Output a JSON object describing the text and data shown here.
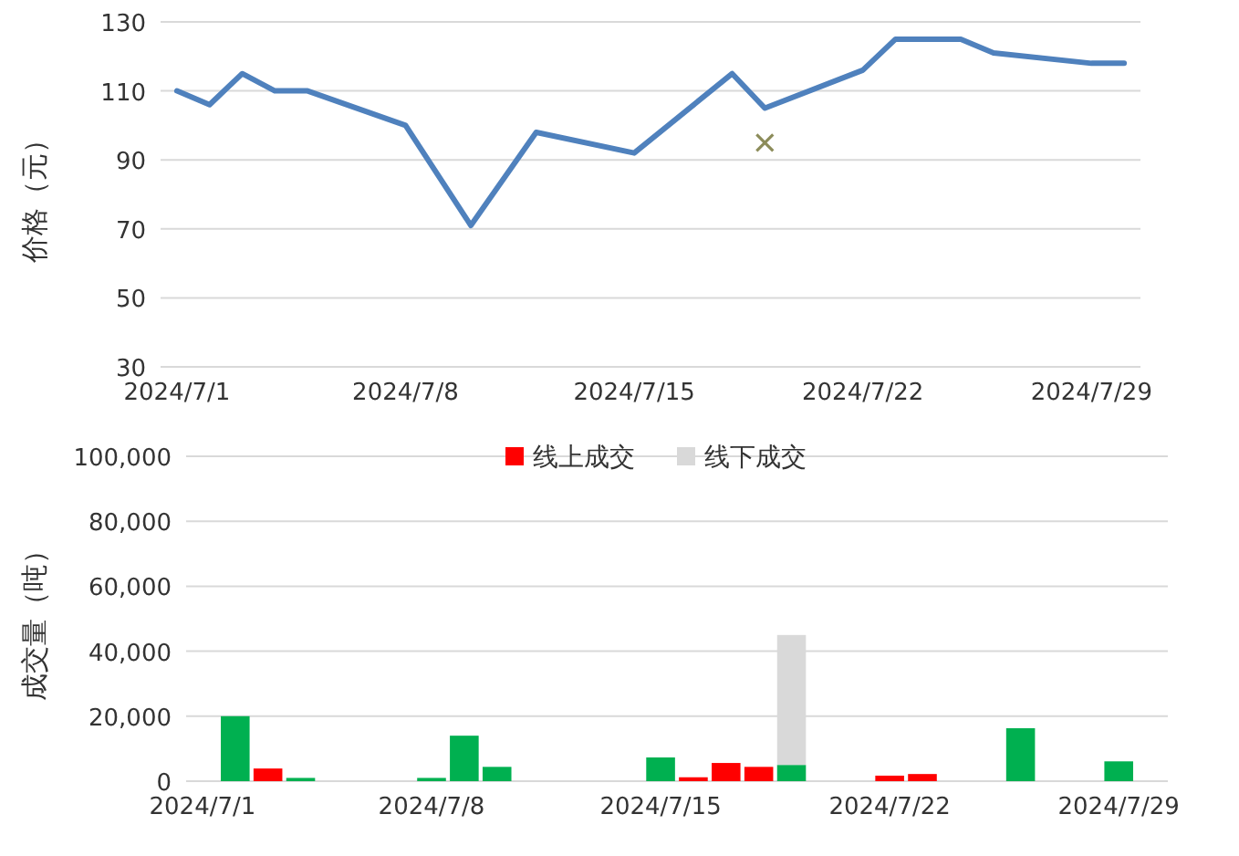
{
  "chart_data": [
    {
      "type": "line",
      "ylabel": "价格（元）",
      "x": [
        "2024-07-01",
        "2024-07-02",
        "2024-07-03",
        "2024-07-04",
        "2024-07-05",
        "2024-07-08",
        "2024-07-10",
        "2024-07-12",
        "2024-07-15",
        "2024-07-18",
        "2024-07-19",
        "2024-07-22",
        "2024-07-23",
        "2024-07-25",
        "2024-07-26",
        "2024-07-29",
        "2024-07-30"
      ],
      "series": [
        {
          "color": "#4f81bd",
          "line_style": "solid",
          "values": [
            110,
            106,
            115,
            110,
            110,
            100,
            71,
            98,
            92,
            115,
            105,
            116,
            125,
            125,
            121,
            118,
            118
          ]
        },
        {
          "type": "scatter",
          "color": "#8c8c5a",
          "marker": "cross",
          "x": [
            "2024-07-19"
          ],
          "values": [
            95
          ]
        }
      ],
      "xlim": [
        "2024-06-30T12:00",
        "2024-07-30T12:00"
      ],
      "xticks": [
        {
          "value": "2024-07-01",
          "label": "2024/7/1"
        },
        {
          "value": "2024-07-08",
          "label": "2024/7/8"
        },
        {
          "value": "2024-07-15",
          "label": "2024/7/15"
        },
        {
          "value": "2024-07-22",
          "label": "2024/7/22"
        },
        {
          "value": "2024-07-29",
          "label": "2024/7/29"
        }
      ],
      "ylim": [
        30,
        130
      ],
      "yticks": [
        30,
        50,
        70,
        90,
        110,
        130
      ],
      "grid": "y",
      "legend": false
    },
    {
      "type": "bar",
      "stacked": true,
      "ylabel": "成交量（吨）",
      "x": [
        "2024-07-02",
        "2024-07-03",
        "2024-07-04",
        "2024-07-08",
        "2024-07-09",
        "2024-07-10",
        "2024-07-15",
        "2024-07-16",
        "2024-07-17",
        "2024-07-18",
        "2024-07-19",
        "2024-07-22",
        "2024-07-23",
        "2024-07-26",
        "2024-07-29"
      ],
      "series": [
        {
          "color": "#00b050",
          "values": [
            20000,
            null,
            1000,
            1000,
            14000,
            4400,
            7300,
            null,
            null,
            null,
            5000,
            null,
            null,
            16300,
            6100
          ]
        },
        {
          "name": "线上成交",
          "color": "#ff0000",
          "values": [
            null,
            3900,
            null,
            null,
            null,
            null,
            null,
            1200,
            5600,
            4400,
            null,
            1700,
            2200,
            null,
            null
          ]
        },
        {
          "name": "线下成交",
          "color": "#d9d9d9",
          "values": [
            null,
            null,
            null,
            null,
            null,
            null,
            null,
            null,
            null,
            null,
            40000,
            null,
            null,
            null,
            null
          ]
        }
      ],
      "xlim": [
        "2024-06-30T12:00",
        "2024-07-30T12:00"
      ],
      "xticks": [
        {
          "value": "2024-07-01",
          "label": "2024/7/1"
        },
        {
          "value": "2024-07-08",
          "label": "2024/7/8"
        },
        {
          "value": "2024-07-15",
          "label": "2024/7/15"
        },
        {
          "value": "2024-07-22",
          "label": "2024/7/22"
        },
        {
          "value": "2024-07-29",
          "label": "2024/7/29"
        }
      ],
      "ylim": [
        0,
        100000
      ],
      "yticks": [
        {
          "value": 0,
          "label": "0"
        },
        {
          "value": 20000,
          "label": "20,000"
        },
        {
          "value": 40000,
          "label": "40,000"
        },
        {
          "value": 60000,
          "label": "60,000"
        },
        {
          "value": 80000,
          "label": "80,000"
        },
        {
          "value": 100000,
          "label": "100,000"
        }
      ],
      "grid": "y",
      "legend": "top"
    }
  ]
}
